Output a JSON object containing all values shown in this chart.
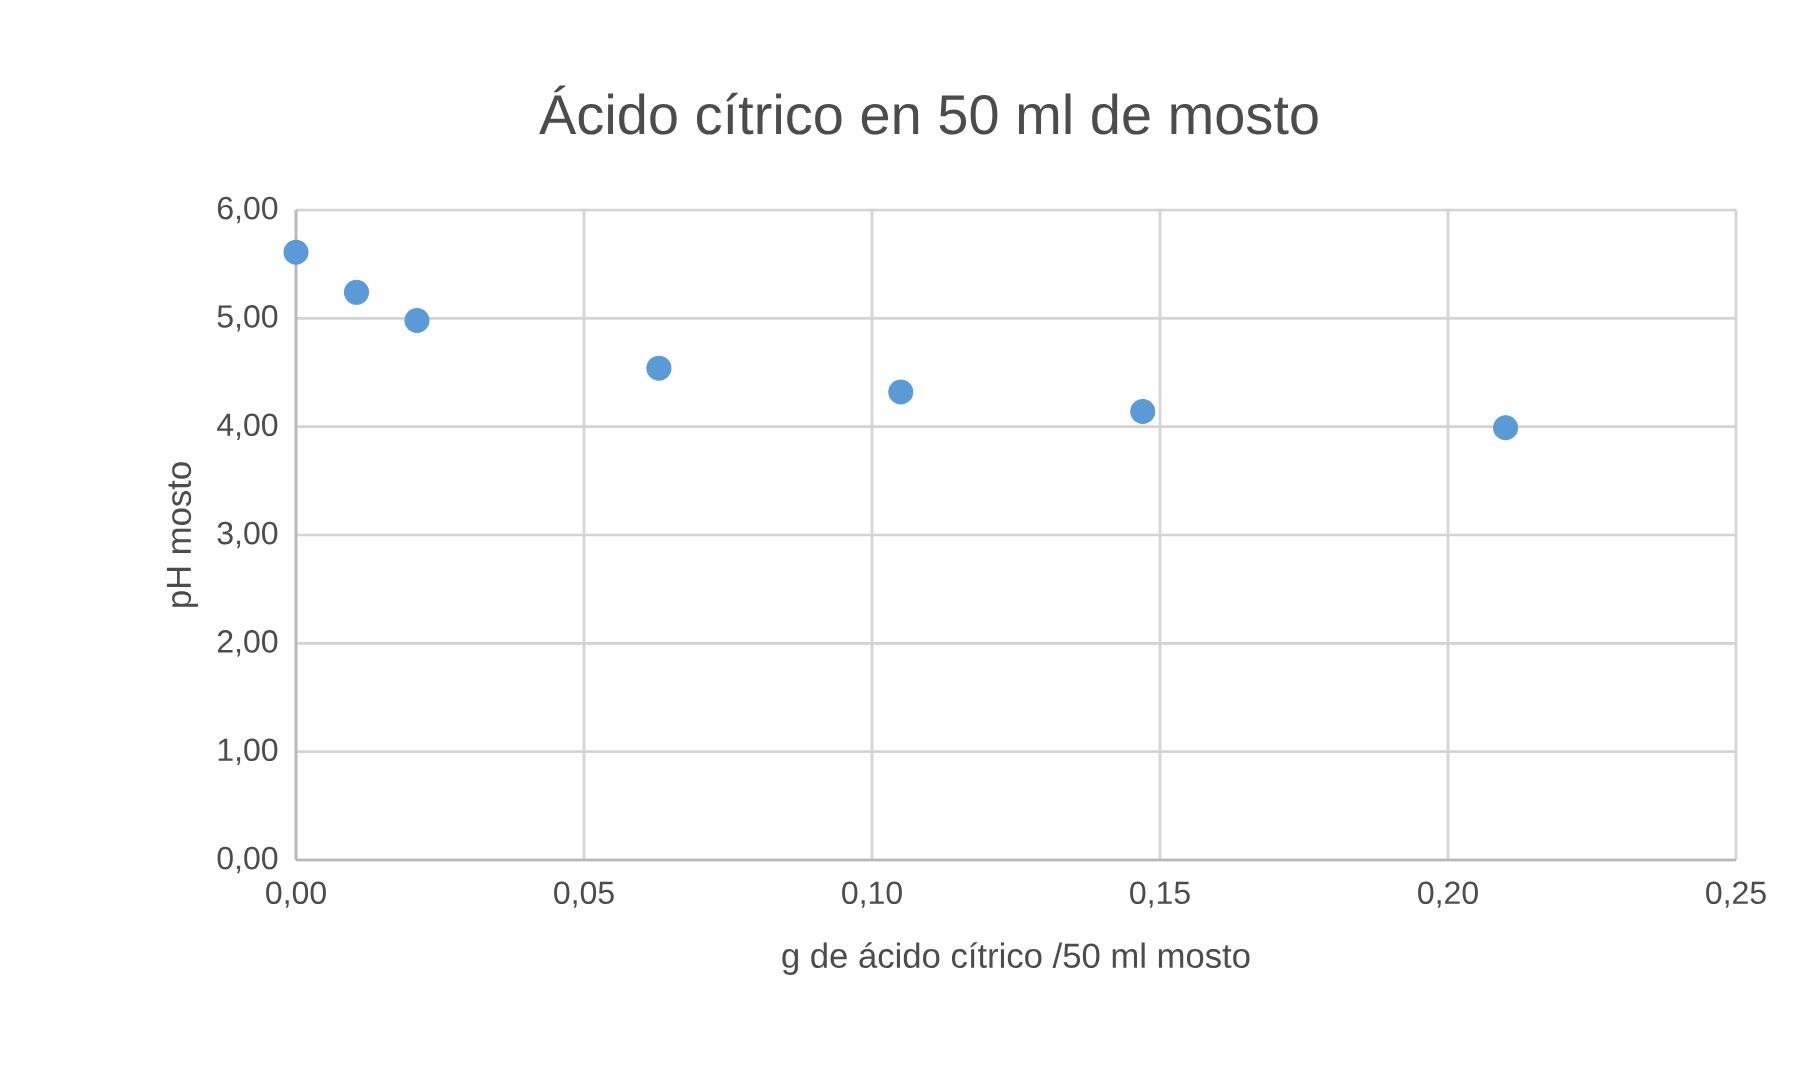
{
  "chart_data": {
    "type": "scatter",
    "title": "Ácido cítrico  en 50 ml de mosto",
    "xlabel": "g de ácido cítrico /50 ml mosto",
    "ylabel": "pH mosto",
    "x": [
      0,
      0.0105,
      0.021,
      0.063,
      0.105,
      0.147,
      0.21
    ],
    "series": [
      {
        "color": "#5b9bd5",
        "values": [
          5.61,
          5.24,
          4.98,
          4.54,
          4.32,
          4.14,
          3.99
        ]
      }
    ],
    "xlim": [
      0,
      0.25
    ],
    "ylim": [
      0,
      6
    ],
    "xticks": [
      {
        "value": 0,
        "label": "0,00"
      },
      {
        "value": 0.05,
        "label": "0,05"
      },
      {
        "value": 0.1,
        "label": "0,10"
      },
      {
        "value": 0.15,
        "label": "0,15"
      },
      {
        "value": 0.2,
        "label": "0,20"
      },
      {
        "value": 0.25,
        "label": "0,25"
      }
    ],
    "yticks": [
      {
        "value": 0,
        "label": "0,00"
      },
      {
        "value": 1,
        "label": "1,00"
      },
      {
        "value": 2,
        "label": "2,00"
      },
      {
        "value": 3,
        "label": "3,00"
      },
      {
        "value": 4,
        "label": "4,00"
      },
      {
        "value": 5,
        "label": "5,00"
      },
      {
        "value": 6,
        "label": "6,00"
      }
    ],
    "grid": true,
    "marker": "circle"
  }
}
